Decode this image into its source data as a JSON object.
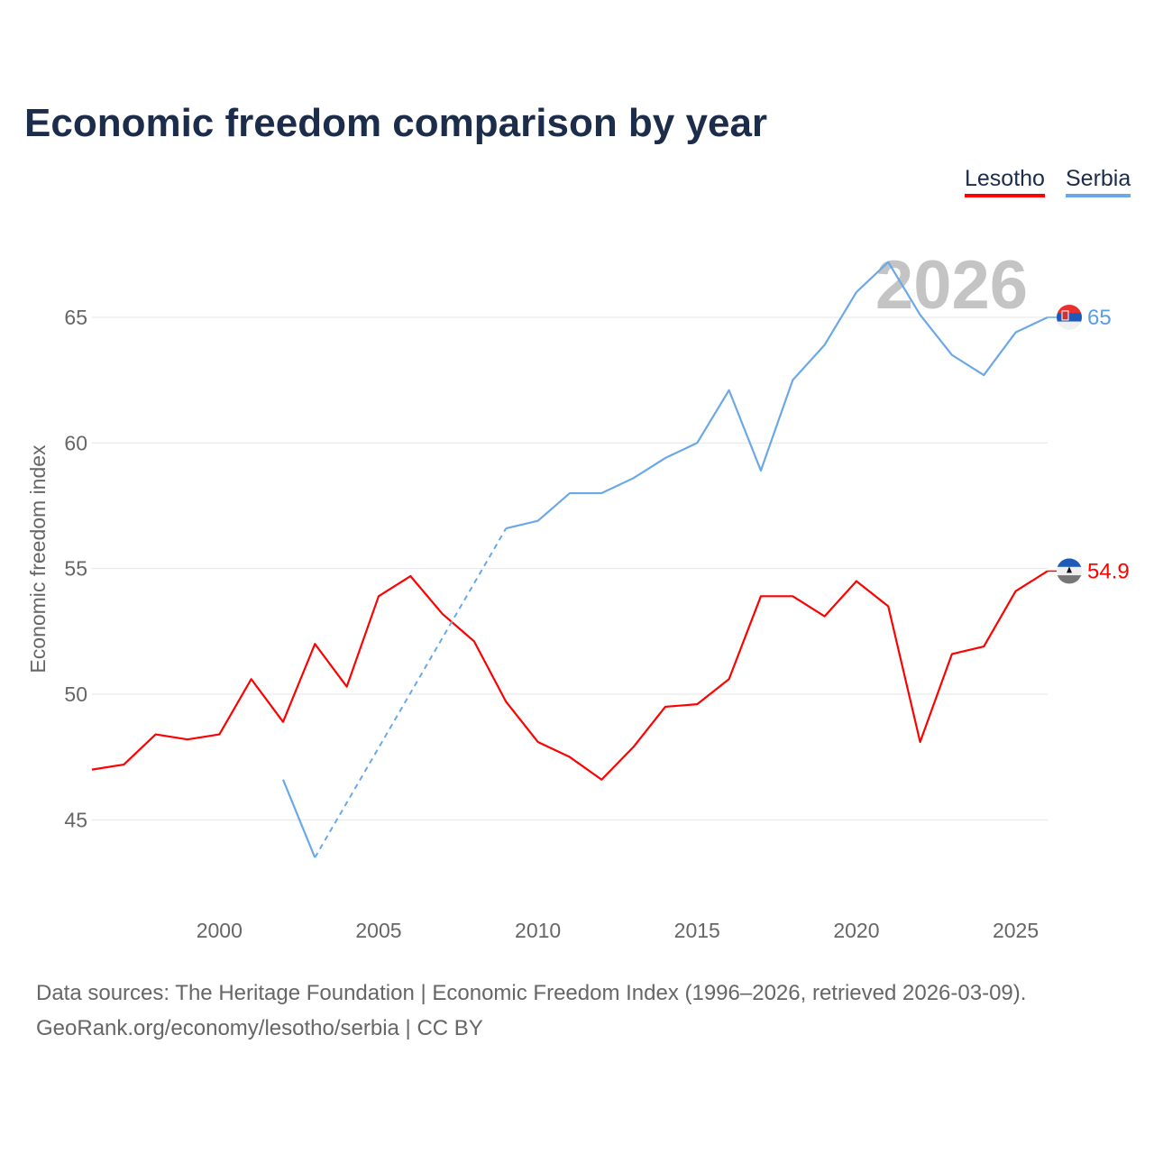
{
  "title": "Economic freedom comparison by year",
  "sources": {
    "line1": "Data sources: The Heritage Foundation | Economic Freedom Index (1996–2026, retrieved 2026-03-09).",
    "line2": "GeoRank.org/economy/lesotho/serbia | CC BY"
  },
  "chart_data": {
    "type": "line",
    "title": "Economic freedom comparison by year",
    "ylabel": "Economic freedom index",
    "xlabel": "",
    "xlim": [
      1996,
      2026
    ],
    "ylim": [
      42,
      68.5
    ],
    "xticks": [
      2000,
      2005,
      2010,
      2015,
      2020,
      2025
    ],
    "yticks": [
      45,
      50,
      55,
      60,
      65
    ],
    "grid": true,
    "legend": "top-right",
    "watermark_year": "2026",
    "series": [
      {
        "name": "Lesotho",
        "color": "#ff0000",
        "end_label": "54.9",
        "x": [
          1996,
          1997,
          1998,
          1999,
          2000,
          2001,
          2002,
          2003,
          2004,
          2005,
          2006,
          2007,
          2008,
          2009,
          2010,
          2011,
          2012,
          2013,
          2014,
          2015,
          2016,
          2017,
          2018,
          2019,
          2020,
          2021,
          2022,
          2023,
          2024,
          2025,
          2026
        ],
        "y": [
          47.0,
          47.2,
          48.4,
          48.2,
          48.4,
          50.6,
          48.9,
          52.0,
          50.3,
          53.9,
          54.7,
          53.2,
          52.1,
          49.7,
          48.1,
          47.5,
          46.6,
          47.9,
          49.5,
          49.6,
          50.6,
          53.9,
          53.9,
          53.1,
          54.5,
          53.5,
          48.1,
          51.6,
          51.9,
          54.1,
          54.9
        ]
      },
      {
        "name": "Serbia",
        "color": "#6aa8e8",
        "end_label": "65",
        "x": [
          2002,
          2003,
          2009,
          2010,
          2011,
          2012,
          2013,
          2014,
          2015,
          2016,
          2017,
          2018,
          2019,
          2020,
          2021,
          2022,
          2023,
          2024,
          2025,
          2026
        ],
        "y": [
          46.6,
          43.5,
          56.6,
          56.9,
          58.0,
          58.0,
          58.6,
          59.4,
          60.0,
          62.1,
          58.9,
          62.5,
          63.9,
          66.0,
          67.2,
          65.1,
          63.5,
          62.7,
          64.4,
          65.0
        ],
        "gap_dashed": [
          2003,
          2009
        ]
      }
    ]
  }
}
